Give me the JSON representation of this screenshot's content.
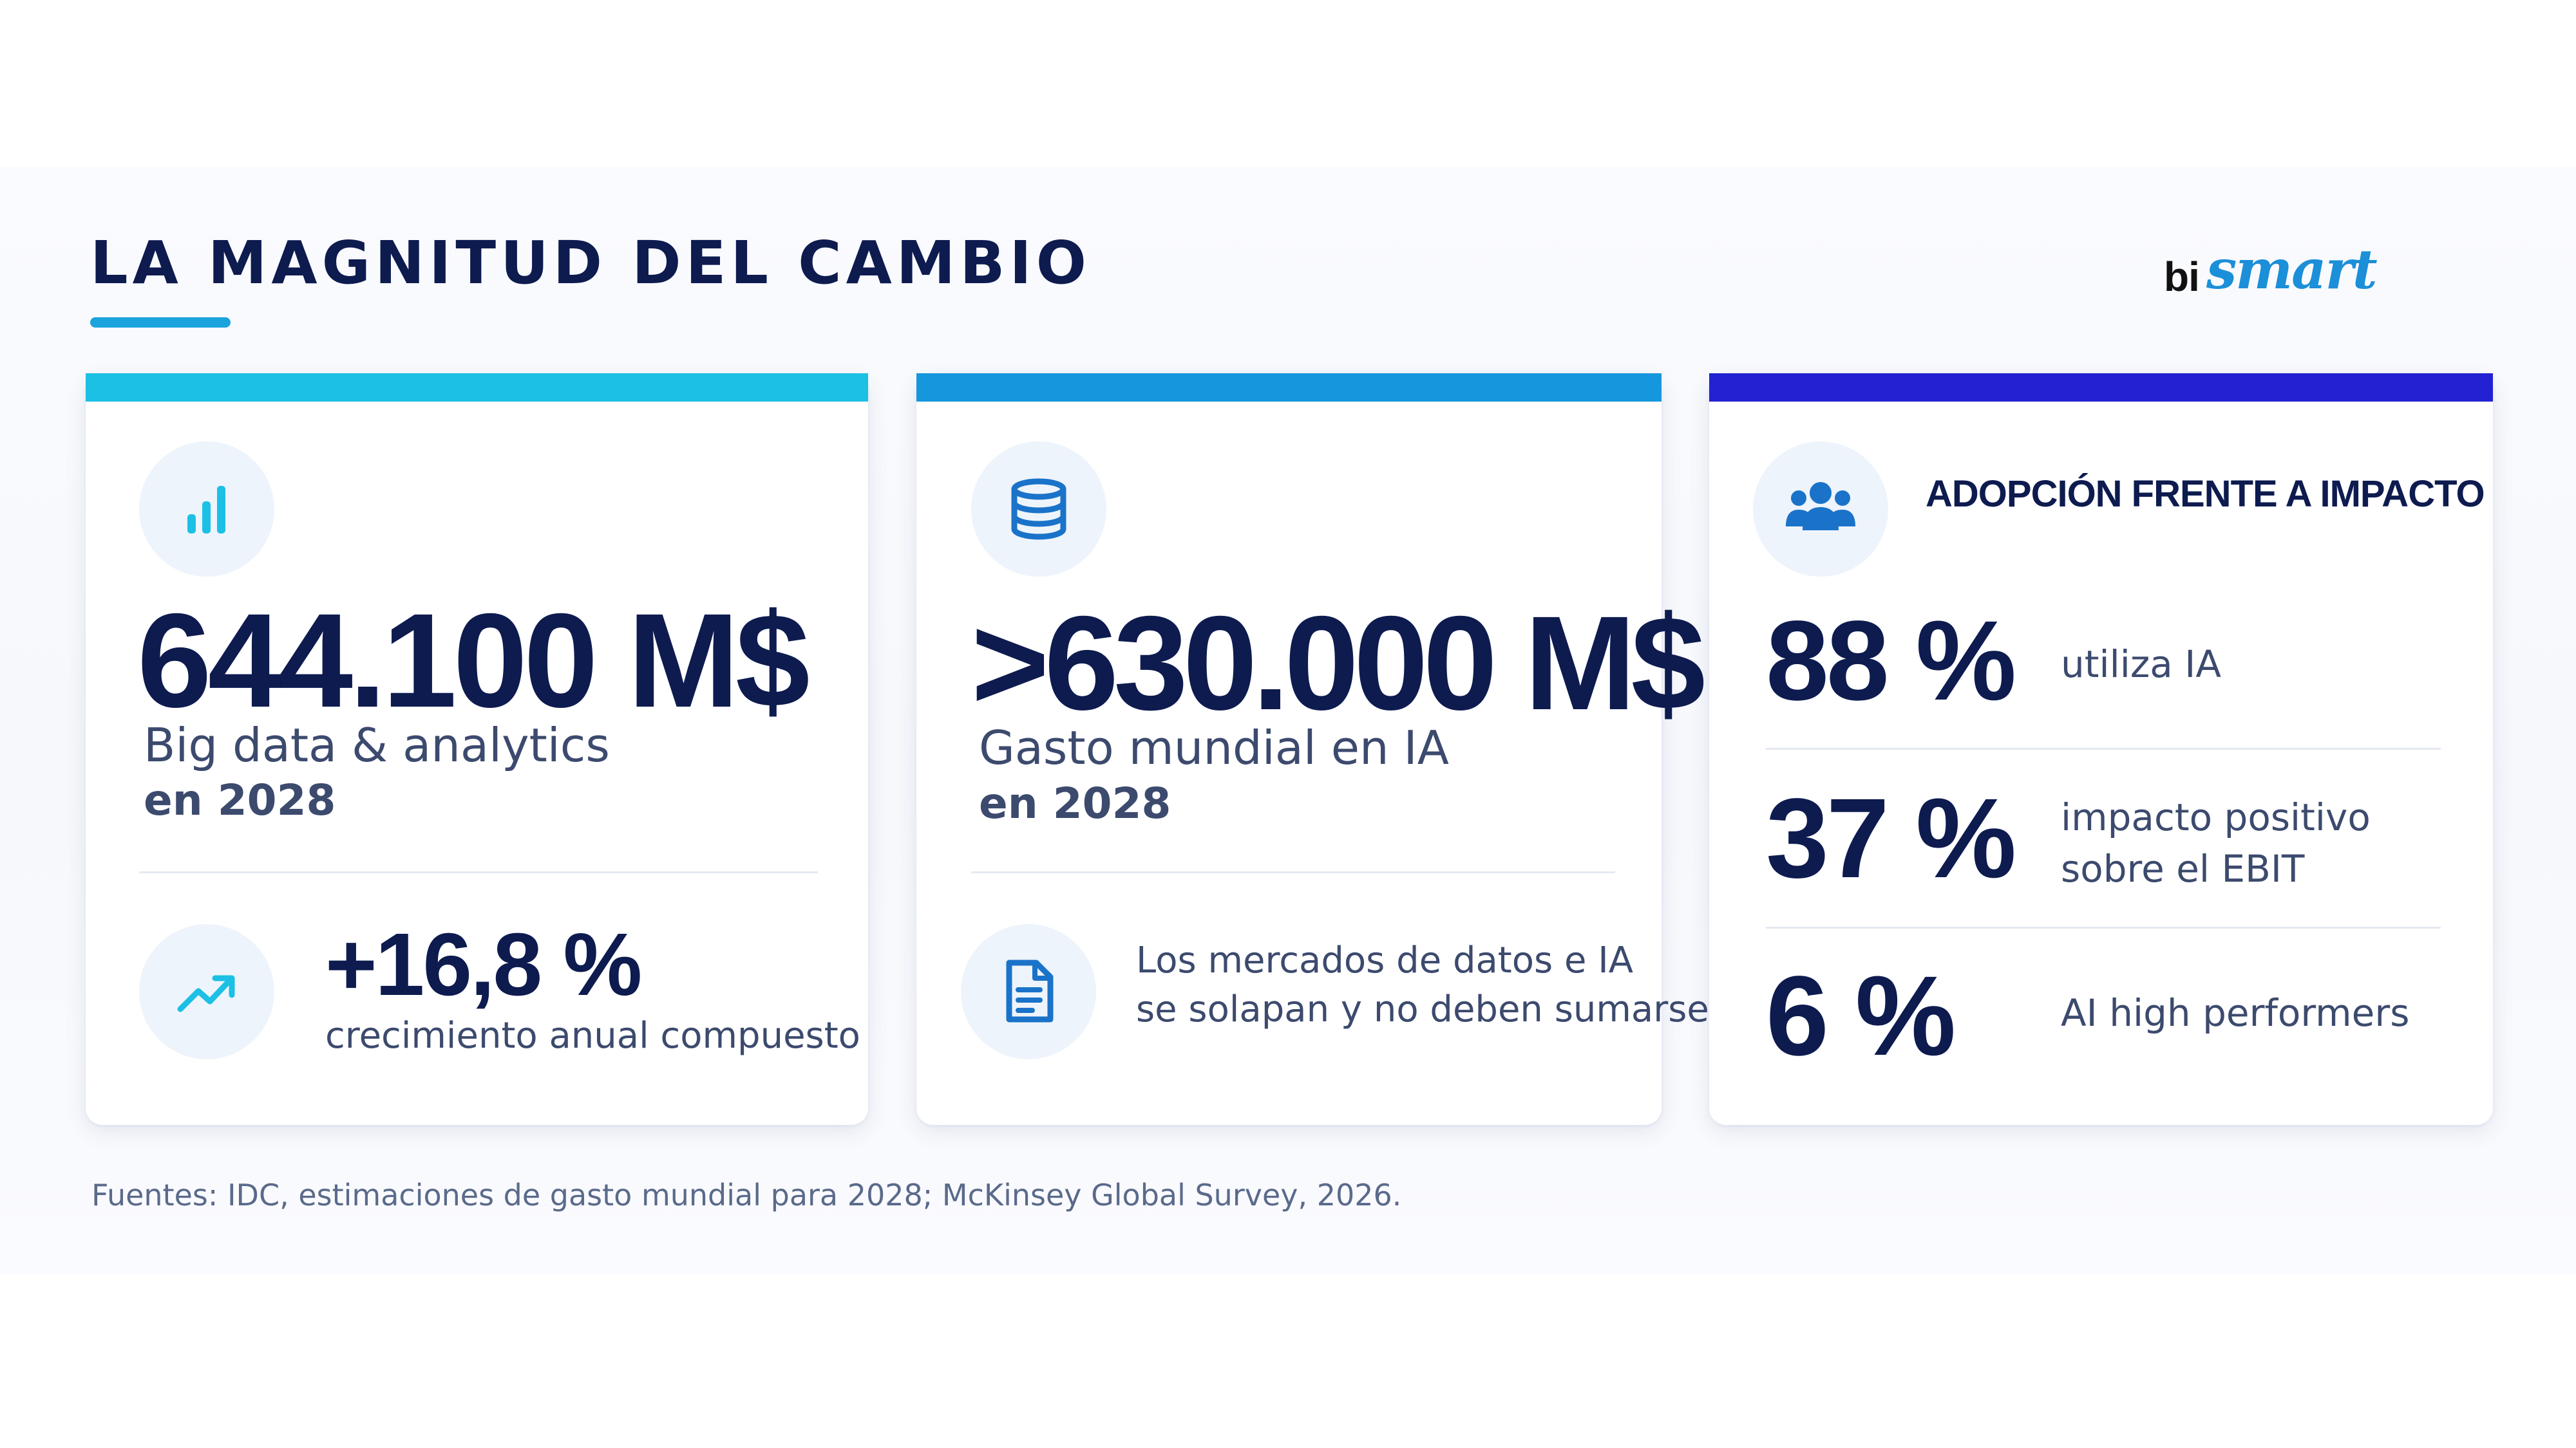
{
  "header": {
    "title": "LA MAGNITUD DEL CAMBIO",
    "logo_bi": "bi",
    "logo_smart": "smart"
  },
  "cards": [
    {
      "value": "644.100 M$",
      "label_line1": "Big data & analytics",
      "label_line2": "en 2028",
      "growth_value": "+16,8 %",
      "growth_label": "crecimiento anual compuesto",
      "icons": [
        "bar-chart-icon",
        "trending-up-icon"
      ],
      "accent": "#1cc0e5"
    },
    {
      "value": ">630.000 M$",
      "label_line1": "Gasto mundial en IA",
      "label_line2": "en 2028",
      "note_line1": "Los mercados de datos e IA",
      "note_line2": "se solapan y no deben sumarse.",
      "icons": [
        "database-icon",
        "document-icon"
      ],
      "accent": "#1696dc"
    },
    {
      "heading": "ADOPCIÓN FRENTE A IMPACTO",
      "icons": [
        "users-icon"
      ],
      "accent": "#2222d2",
      "stats": [
        {
          "value": "88 %",
          "label_line1": "utiliza IA",
          "label_line2": ""
        },
        {
          "value": "37 %",
          "label_line1": "impacto positivo",
          "label_line2": "sobre el EBIT"
        },
        {
          "value": "6 %",
          "label_line1": "AI high performers",
          "label_line2": ""
        }
      ]
    }
  ],
  "footer": {
    "source": "Fuentes: IDC, estimaciones de gasto mundial para 2028; McKinsey Global Survey, 2026."
  },
  "colors": {
    "navy": "#0d1b4f",
    "cyan": "#1cc0e5",
    "blue": "#1696dc",
    "indigo": "#2222d2",
    "icon_blue": "#1a73c9"
  }
}
